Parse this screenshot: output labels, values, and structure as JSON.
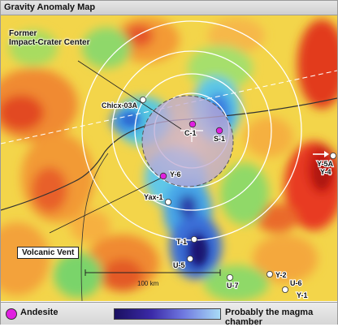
{
  "title": "Gravity Anomaly Map",
  "annotations": {
    "crater_center": "Former\nImpact-Crater Center",
    "volcanic_vent": "Volcanic Vent"
  },
  "scale_bar": {
    "label": "100 km"
  },
  "sites": [
    {
      "id": "chicx03a",
      "label": "Chicx-03A",
      "type": "well"
    },
    {
      "id": "c1",
      "label": "C-1",
      "type": "andesite"
    },
    {
      "id": "s1",
      "label": "S-1",
      "type": "andesite"
    },
    {
      "id": "y6",
      "label": "Y-6",
      "type": "andesite"
    },
    {
      "id": "yax1",
      "label": "Yax-1",
      "type": "well"
    },
    {
      "id": "t1",
      "label": "T-1",
      "type": "well"
    },
    {
      "id": "u5",
      "label": "U-5",
      "type": "well"
    },
    {
      "id": "u7",
      "label": "U-7",
      "type": "well"
    },
    {
      "id": "y2",
      "label": "Y-2",
      "type": "well"
    },
    {
      "id": "u6",
      "label": "U-6",
      "type": "well"
    },
    {
      "id": "y1",
      "label": "Y-1",
      "type": "well"
    },
    {
      "id": "y5a",
      "label": "Y-5A",
      "type": "well"
    },
    {
      "id": "y4",
      "label": "Y-4",
      "type": "well"
    }
  ],
  "legend": {
    "andesite": "Andesite",
    "magma": "Probably the magma chamber"
  },
  "colors": {
    "andesite": "#e020e0",
    "well": "#ffffff",
    "magma_dark": "#1a1060",
    "magma_light": "#a9dcf6"
  }
}
